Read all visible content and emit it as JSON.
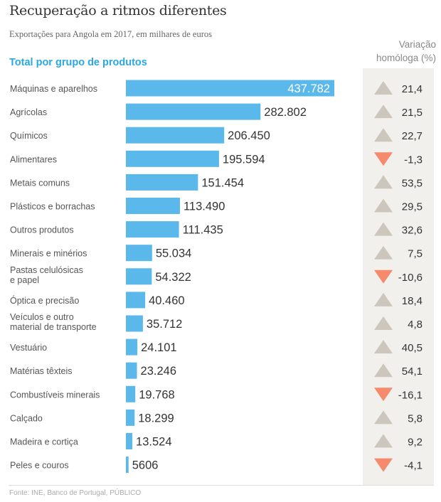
{
  "title": "Recuperação a ritmos diferentes",
  "subtitle": "Exportações para Angola em 2017, em milhares de euros",
  "source": "Fonte: INE, Banco de Portugal, PÚBLICO",
  "colors": {
    "bar": "#5bb8ea",
    "up": "#ccc6bd",
    "down": "#f58a6c",
    "accent": "#2aa9e0",
    "panel": "#f2f0ed"
  },
  "chart_data": {
    "type": "bar",
    "orientation": "horizontal",
    "title": "Total por grupo de produtos",
    "unit": "milhares de euros",
    "categories": [
      [
        "Máquinas e aparelhos"
      ],
      [
        "Agrícolas"
      ],
      [
        "Químicos"
      ],
      [
        "Alimentares"
      ],
      [
        "Metais comuns"
      ],
      [
        "Plásticos e borrachas"
      ],
      [
        "Outros produtos"
      ],
      [
        "Minerais e minérios"
      ],
      [
        "Pastas celulósicas",
        "e papel"
      ],
      [
        "Óptica e precisão"
      ],
      [
        "Veículos e outro",
        "material de transporte"
      ],
      [
        "Vestuário"
      ],
      [
        "Matérias têxteis"
      ],
      [
        "Combustíveis minerais"
      ],
      [
        "Calçado"
      ],
      [
        "Madeira e cortiça"
      ],
      [
        "Peles e couros"
      ]
    ],
    "values": [
      437782,
      282802,
      206450,
      195594,
      151454,
      113490,
      111435,
      55034,
      54322,
      40460,
      35712,
      24101,
      23246,
      19768,
      18299,
      13524,
      5606
    ],
    "value_labels": [
      "437.782",
      "282.802",
      "206.450",
      "195.594",
      "151.454",
      "113.490",
      "111.435",
      "55.034",
      "54.322",
      "40.460",
      "35.712",
      "24.101",
      "23.246",
      "19.768",
      "18.299",
      "13.524",
      "5606"
    ],
    "change_header": [
      "Variação",
      "homóloga (%)"
    ],
    "change": [
      21.4,
      21.5,
      22.7,
      -1.3,
      53.5,
      29.5,
      32.6,
      7.5,
      -10.6,
      18.4,
      4.8,
      40.5,
      54.1,
      -16.1,
      5.8,
      9.2,
      -4.1
    ],
    "change_labels": [
      "21,4",
      "21,5",
      "22,7",
      "-1,3",
      "53,5",
      "29,5",
      "32,6",
      "7,5",
      "-10,6",
      "18,4",
      "4,8",
      "40,5",
      "54,1",
      "-16,1",
      "5,8",
      "9,2",
      "-4,1"
    ],
    "xlim": [
      0,
      437782
    ],
    "grid": false
  }
}
